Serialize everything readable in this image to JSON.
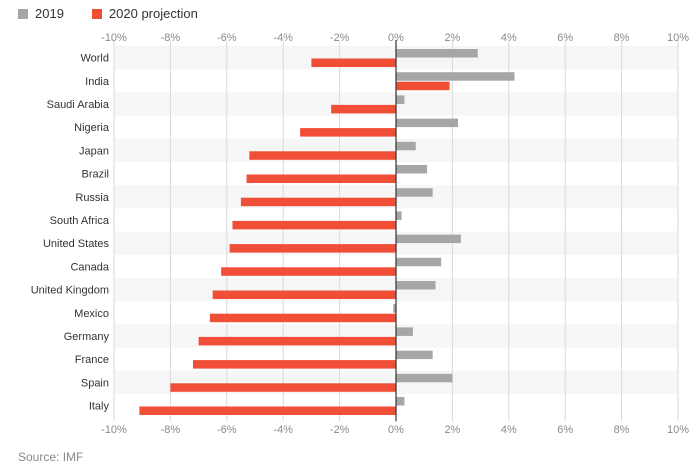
{
  "legend": {
    "series_2019": "2019",
    "series_2020": "2020 projection"
  },
  "source": "Source: IMF",
  "colors": {
    "series_2019": "#a6a6a6",
    "series_2020": "#f04e37",
    "band": "#f6f6f6",
    "grid": "#d9d9d9",
    "axis": "#333333",
    "tick_text": "#8a8a8a"
  },
  "chart_data": {
    "type": "bar",
    "orientation": "horizontal",
    "categories": [
      "World",
      "India",
      "Saudi Arabia",
      "Nigeria",
      "Japan",
      "Brazil",
      "Russia",
      "South Africa",
      "United States",
      "Canada",
      "United Kingdom",
      "Mexico",
      "Germany",
      "France",
      "Spain",
      "Italy"
    ],
    "series": [
      {
        "name": "2019",
        "values": [
          2.9,
          4.2,
          0.3,
          2.2,
          0.7,
          1.1,
          1.3,
          0.2,
          2.3,
          1.6,
          1.4,
          -0.1,
          0.6,
          1.3,
          2.0,
          0.3
        ]
      },
      {
        "name": "2020 projection",
        "values": [
          -3.0,
          1.9,
          -2.3,
          -3.4,
          -5.2,
          -5.3,
          -5.5,
          -5.8,
          -5.9,
          -6.2,
          -6.5,
          -6.6,
          -7.0,
          -7.2,
          -8.0,
          -9.1
        ]
      }
    ],
    "x_ticks": [
      "-10%",
      "-8%",
      "-6%",
      "-4%",
      "-2%",
      "0%",
      "2%",
      "4%",
      "6%",
      "8%",
      "10%"
    ],
    "xlim": [
      -10,
      10
    ],
    "xlabel": "",
    "ylabel": "",
    "grid": true,
    "legend_position": "top-left"
  }
}
